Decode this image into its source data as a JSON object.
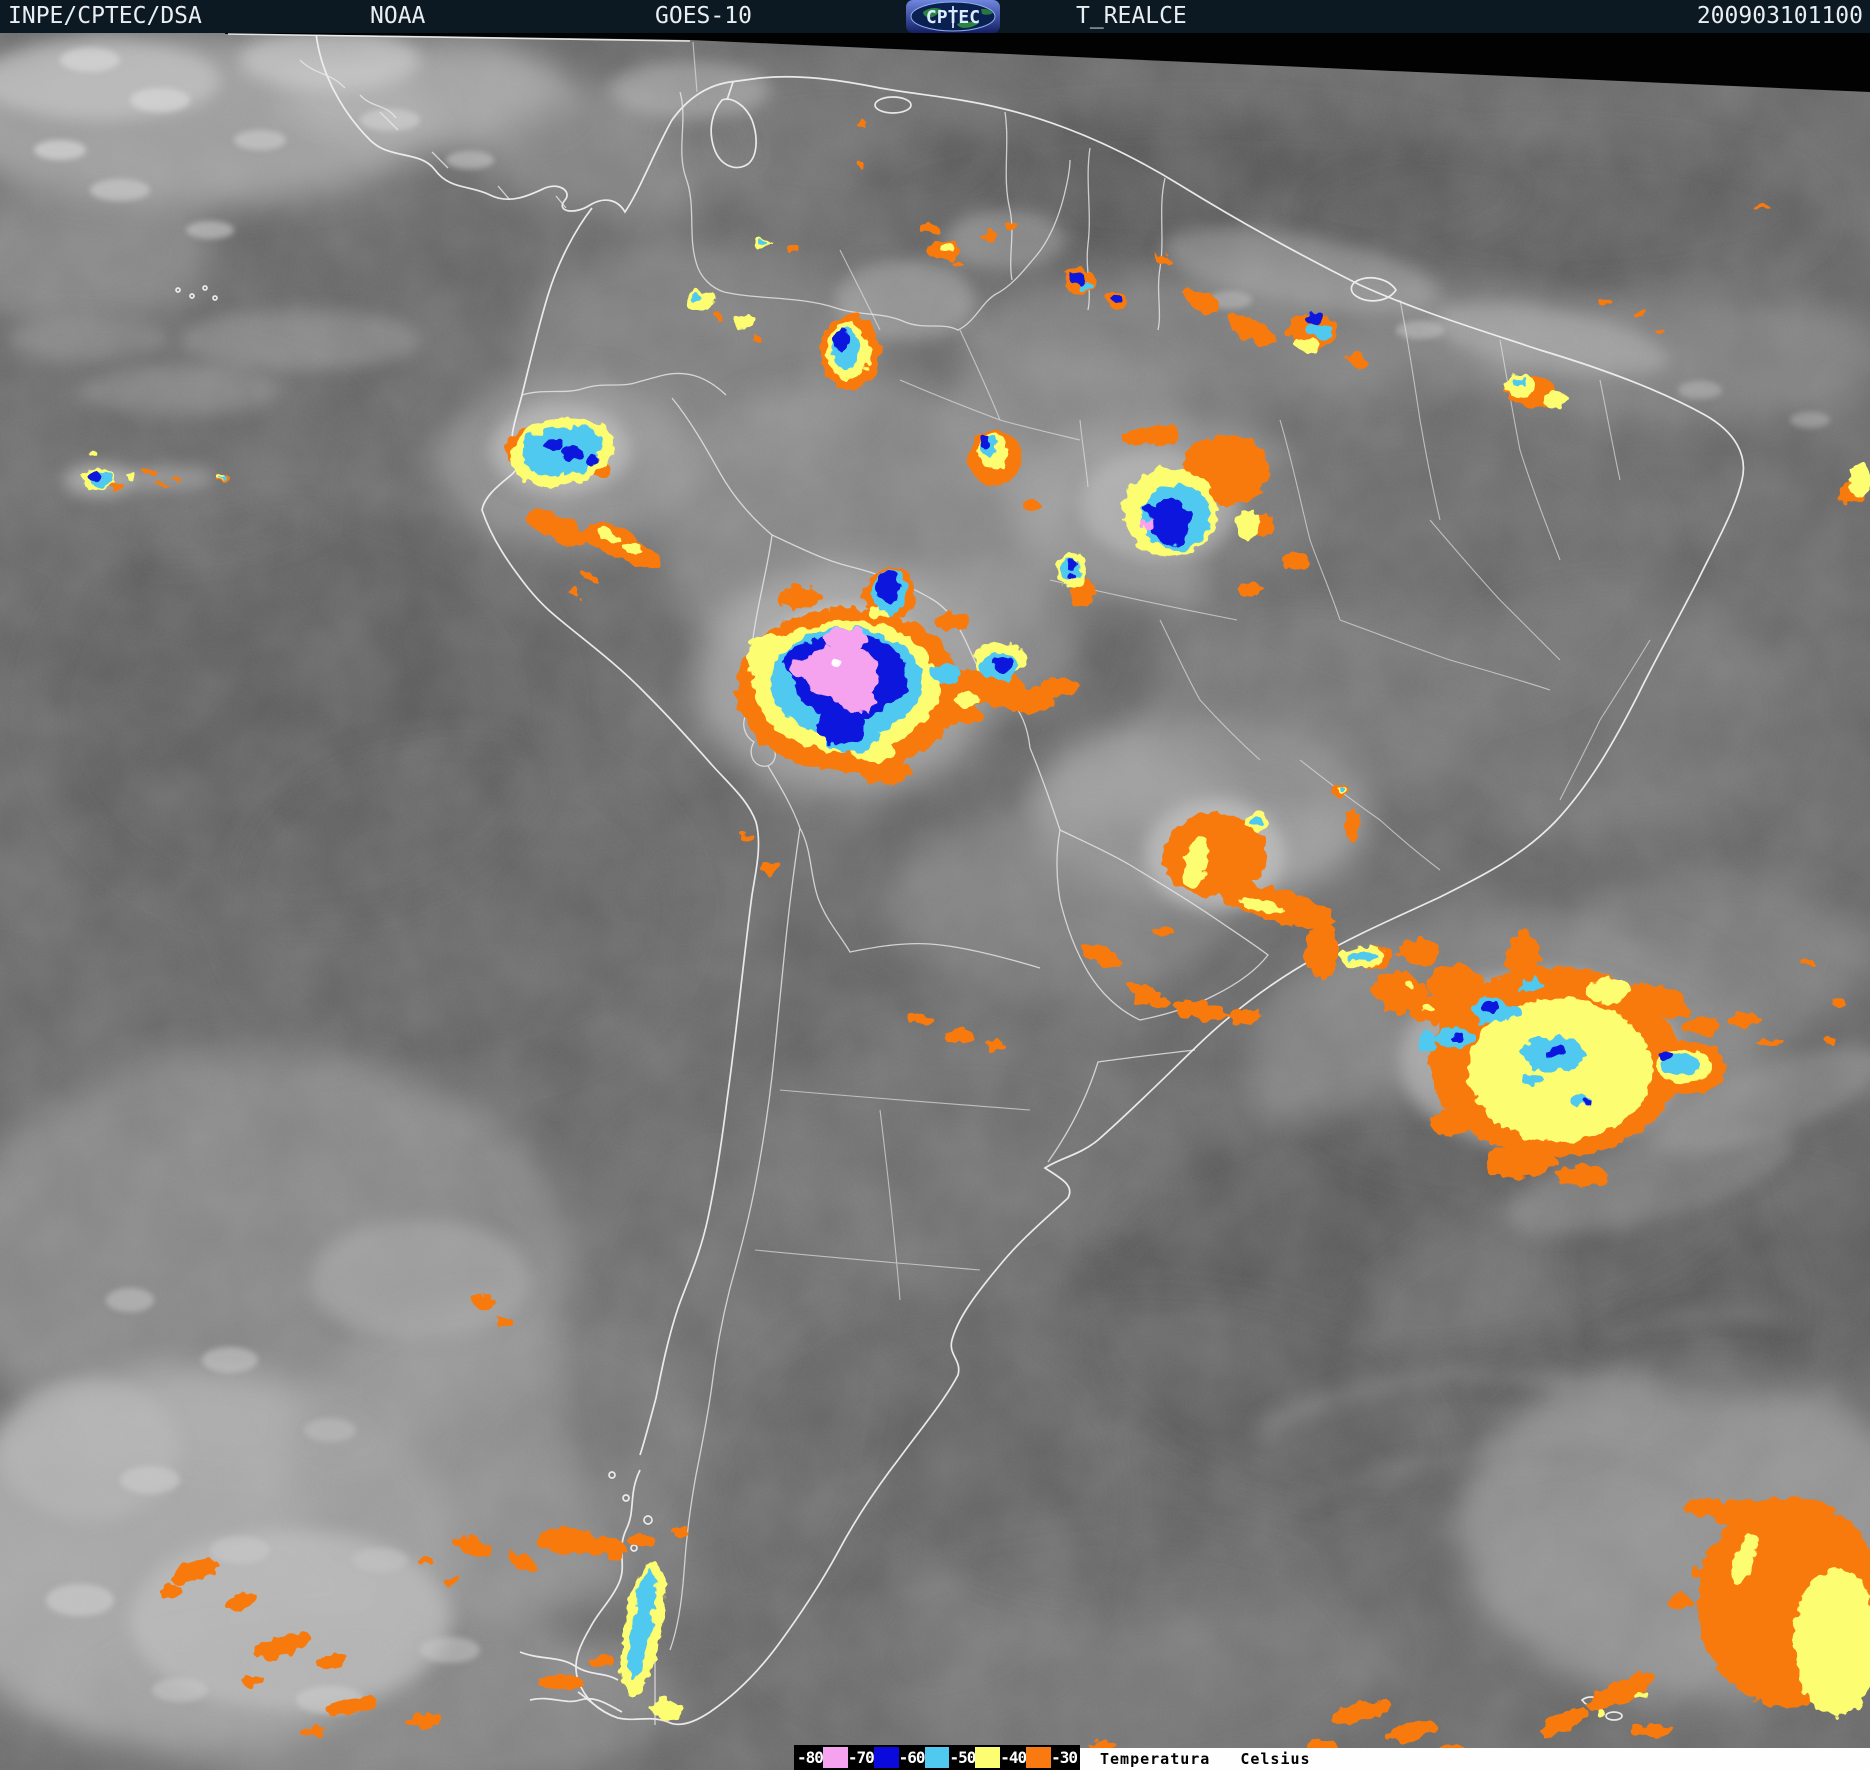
{
  "header": {
    "agency": "INPE/CPTEC/DSA",
    "org": "NOAA",
    "satellite": "GOES-10",
    "logo_text": "CPTEC",
    "product": "T_REALCE",
    "timestamp": "200903101100",
    "bg_color": "#0c1922",
    "text_color": "#e9eef2"
  },
  "legend": {
    "bar_bg": "#000000",
    "label_color": "#ffffff",
    "items": [
      {
        "label": "-80",
        "swatch": "#f6a3ef"
      },
      {
        "label": "-70",
        "swatch": "#0a0adc"
      },
      {
        "label": "-60",
        "swatch": "#50c9f0"
      },
      {
        "label": "-50",
        "swatch": "#fdfd72"
      },
      {
        "label": "-40",
        "swatch": "#f87a10"
      },
      {
        "label": "-30",
        "swatch": null
      }
    ],
    "title": "Temperatura",
    "unit": "Celsius"
  },
  "map": {
    "kind": "infrared satellite image with temperature enhancement over South America",
    "enhancement_palette": {
      "-30C": "#f87a10",
      "-40C": "#fdfd72",
      "-50C": "#50c9f0",
      "-60C": "#0a0adc",
      "-70C": "#f6a3ef"
    },
    "border_color": "#f0f0f0",
    "ocean_gray": "#646464"
  }
}
